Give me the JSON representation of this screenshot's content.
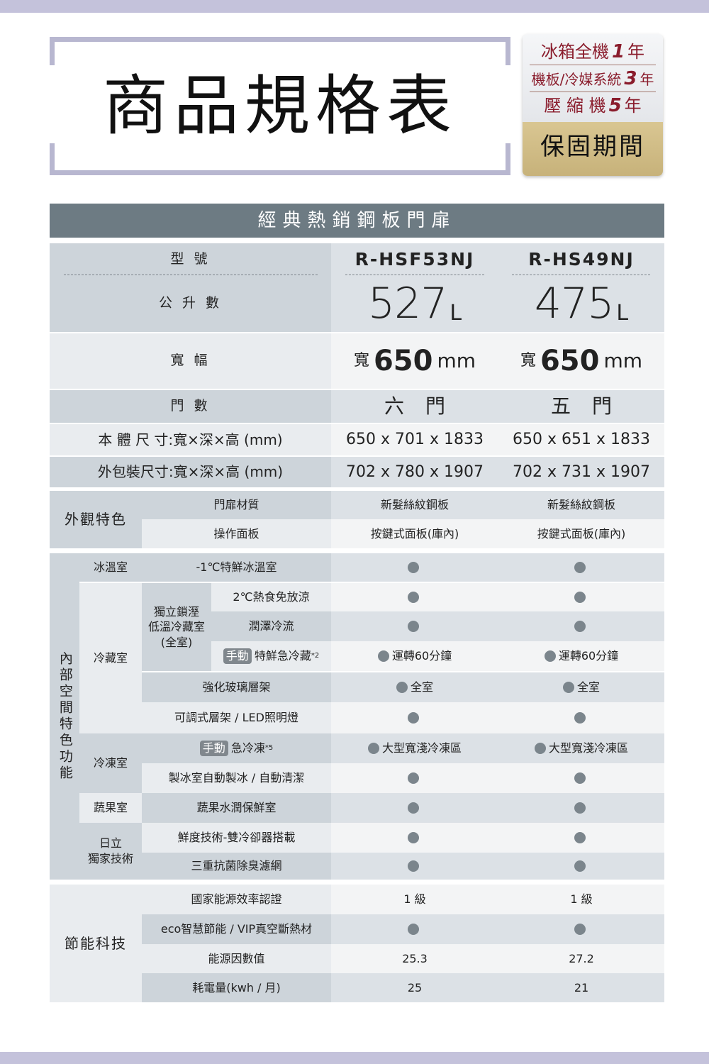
{
  "header": {
    "title": "商品規格表"
  },
  "warranty": {
    "lines": [
      {
        "text": "冰箱全機",
        "years": "1",
        "unit": "年"
      },
      {
        "text": "機板/冷媒系統",
        "years": "3",
        "unit": "年"
      },
      {
        "text": "壓 縮 機",
        "years": "5",
        "unit": "年"
      }
    ],
    "label": "保固期間"
  },
  "section_title": "經典熱銷鋼板門扉",
  "specs": [
    {
      "label": "型 號",
      "values": [
        "R-HSF53NJ",
        "R-HS49NJ"
      ]
    },
    {
      "label": "公 升 數",
      "values": [
        {
          "num": "527",
          "unit": "L"
        },
        {
          "num": "475",
          "unit": "L"
        }
      ]
    },
    {
      "label": "寬 幅",
      "values": [
        {
          "prefix": "寬",
          "num": "650",
          "unit": "mm"
        },
        {
          "prefix": "寬",
          "num": "650",
          "unit": "mm"
        }
      ]
    },
    {
      "label": "門 數",
      "values": [
        "六門",
        "五門"
      ]
    },
    {
      "label": "本 體 尺 寸:寬×深×高 (mm)",
      "values": [
        "650 x 701 x 1833",
        "650 x 651 x 1833"
      ]
    },
    {
      "label": "外包裝尺寸:寬×深×高 (mm)",
      "values": [
        "702 x 780 x 1907",
        "702 x 731 x 1907"
      ]
    }
  ],
  "exterior": {
    "group": "外觀特色",
    "rows": [
      {
        "label": "門扉材質",
        "values": [
          "新髮絲紋鋼板",
          "新髮絲紋鋼板"
        ]
      },
      {
        "label": "操作面板",
        "values": [
          "按鍵式面板(庫內)",
          "按鍵式面板(庫內)"
        ]
      }
    ]
  },
  "interior": {
    "group": "內部空間特色功能",
    "categories": [
      "冰溫室",
      "冷藏室",
      "冷凍室",
      "蔬果室",
      "日立\n獨家技術"
    ],
    "subgroup": "獨立鎖溼\n低溫冷藏室\n(全室)",
    "rows": [
      {
        "label": "-1℃特鮮冰溫室",
        "values": [
          {
            "icon": "dot"
          },
          {
            "icon": "dot"
          }
        ]
      },
      {
        "label": "2℃熱食免放涼",
        "values": [
          {
            "icon": "dot"
          },
          {
            "icon": "dot"
          }
        ]
      },
      {
        "label": "潤澤冷流",
        "values": [
          {
            "icon": "dot"
          },
          {
            "icon": "dot"
          }
        ]
      },
      {
        "tag": "手動",
        "label": "特鮮急冷藏",
        "sup": "*2",
        "values": [
          {
            "icon": "dot",
            "text": "運轉60分鐘"
          },
          {
            "icon": "dot",
            "text": "運轉60分鐘"
          }
        ]
      },
      {
        "label": "強化玻璃層架",
        "values": [
          {
            "icon": "dot",
            "text": "全室"
          },
          {
            "icon": "dot",
            "text": "全室"
          }
        ]
      },
      {
        "label": "可調式層架 / LED照明燈",
        "values": [
          {
            "icon": "dot"
          },
          {
            "icon": "dot"
          }
        ]
      },
      {
        "tag": "手動",
        "label": "急冷凍",
        "sup": "*5",
        "values": [
          {
            "icon": "dot",
            "text": "大型寬淺冷凍區"
          },
          {
            "icon": "dot",
            "text": "大型寬淺冷凍區"
          }
        ]
      },
      {
        "label": "製冰室自動製冰 / 自動清潔",
        "values": [
          {
            "icon": "dot"
          },
          {
            "icon": "dot"
          }
        ]
      },
      {
        "label": "蔬果水潤保鮮室",
        "values": [
          {
            "icon": "dot"
          },
          {
            "icon": "dot"
          }
        ]
      },
      {
        "label": "鮮度技術-雙冷卻器搭載",
        "values": [
          {
            "icon": "dot"
          },
          {
            "icon": "dot"
          }
        ]
      },
      {
        "label": "三重抗菌除臭濾網",
        "values": [
          {
            "icon": "dot"
          },
          {
            "icon": "dot"
          }
        ]
      }
    ]
  },
  "energy": {
    "group": "節能科技",
    "rows": [
      {
        "label": "國家能源效率認證",
        "values": [
          "1 級",
          "1 級"
        ]
      },
      {
        "label": "eco智慧節能 / VIP真空斷熱材",
        "values": [
          {
            "icon": "dot"
          },
          {
            "icon": "dot"
          }
        ]
      },
      {
        "label": "能源因數值",
        "values": [
          "25.3",
          "27.2"
        ]
      },
      {
        "label": "耗電量(kwh / 月)",
        "values": [
          "25",
          "21"
        ]
      }
    ]
  },
  "colors": {
    "band": "#c4c2db",
    "title_bar": "#6d7b83",
    "warranty_text": "#8a1c2c",
    "warranty_gold": "#d4c08a",
    "dot": "#7b858c"
  }
}
